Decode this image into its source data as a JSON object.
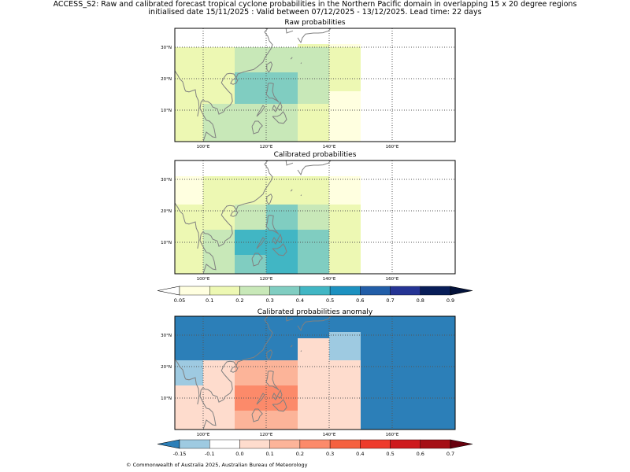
{
  "header": {
    "line1": "ACCESS_S2: Raw and calibrated forecast tropical cyclone probabilities in the Northern Pacific domain in overlapping 15 x 20 degree regions",
    "line2": "initialised date 15/11/2025 :  Valid between 07/12/2025 - 13/12/2025. Lead time: 22 days"
  },
  "footer": {
    "copyright": "© Commonwealth of Australia 2025, Australian Bureau of Meteorology"
  },
  "colors": {
    "land_outline": "#808080",
    "grid": "#555555",
    "prob_scale": [
      "#ffffff",
      "#ffffe0",
      "#edf8b3",
      "#c8e8b8",
      "#80cdc1",
      "#41b6c4",
      "#1d91c0",
      "#225ea8",
      "#253494",
      "#081d58",
      "#03123a"
    ],
    "anom_scale": [
      "#2c7fb8",
      "#9ecae1",
      "#ffffff",
      "#fedccd",
      "#fcb499",
      "#fc8a6a",
      "#f5613f",
      "#ee3b2c",
      "#ce1a1d",
      "#a50f15",
      "#67000d"
    ]
  },
  "chart_data": [
    {
      "type": "heatmap",
      "title": "Raw probabilities",
      "xlabel": "",
      "ylabel": "",
      "xlim": [
        91,
        180
      ],
      "ylim": [
        0,
        36
      ],
      "x_ticks": [
        100,
        120,
        140,
        160
      ],
      "x_tick_labels": [
        "100°E",
        "120°E",
        "140°E",
        "160°E"
      ],
      "y_ticks": [
        10,
        20,
        30
      ],
      "y_tick_labels": [
        "10°N",
        "20°N",
        "30°N"
      ],
      "grid": true,
      "cells": [
        {
          "lon": [
            91,
            100
          ],
          "lat": [
            0,
            22
          ],
          "value": 0.15
        },
        {
          "lon": [
            100,
            110
          ],
          "lat": [
            0,
            22
          ],
          "value": 0.25
        },
        {
          "lon": [
            110,
            120
          ],
          "lat": [
            0,
            22
          ],
          "value": 0.25
        },
        {
          "lon": [
            120,
            130
          ],
          "lat": [
            0,
            22
          ],
          "value": 0.25
        },
        {
          "lon": [
            130,
            140
          ],
          "lat": [
            0,
            22
          ],
          "value": 0.25
        },
        {
          "lon": [
            140,
            150
          ],
          "lat": [
            0,
            22
          ],
          "value": 0.05
        },
        {
          "lon": [
            91,
            100
          ],
          "lat": [
            22,
            30
          ],
          "value": 0.15
        },
        {
          "lon": [
            100,
            110
          ],
          "lat": [
            22,
            30
          ],
          "value": 0.15
        },
        {
          "lon": [
            110,
            120
          ],
          "lat": [
            22,
            30
          ],
          "value": 0.25
        },
        {
          "lon": [
            120,
            130
          ],
          "lat": [
            22,
            30
          ],
          "value": 0.25
        },
        {
          "lon": [
            130,
            140
          ],
          "lat": [
            22,
            30
          ],
          "value": 0.25
        },
        {
          "lon": [
            140,
            150
          ],
          "lat": [
            22,
            30
          ],
          "value": 0.15
        },
        {
          "lon": [
            110,
            120
          ],
          "lat": [
            6,
            14
          ],
          "value": 0.35
        },
        {
          "lon": [
            120,
            130
          ],
          "lat": [
            6,
            14
          ],
          "value": 0.35
        },
        {
          "lon": [
            110,
            120
          ],
          "lat": [
            14,
            22
          ],
          "value": 0.35
        },
        {
          "lon": [
            120,
            130
          ],
          "lat": [
            14,
            22
          ],
          "value": 0.35
        },
        {
          "lon": [
            130,
            140
          ],
          "lat": [
            6,
            14
          ],
          "value": 0.25
        },
        {
          "lon": [
            100,
            110
          ],
          "lat": [
            12,
            22
          ],
          "value": 0.15
        },
        {
          "lon": [
            91,
            100
          ],
          "lat": [
            12,
            22
          ],
          "value": 0.15
        },
        {
          "lon": [
            140,
            150
          ],
          "lat": [
            0,
            16
          ],
          "value": 0.05
        },
        {
          "lon": [
            140,
            150
          ],
          "lat": [
            16,
            30
          ],
          "value": 0.15
        },
        {
          "lon": [
            130,
            140
          ],
          "lat": [
            0,
            12
          ],
          "value": 0.15
        },
        {
          "lon": [
            130,
            140
          ],
          "lat": [
            12,
            16
          ],
          "value": 0.25
        },
        {
          "lon": [
            100,
            110
          ],
          "lat": [
            0,
            12
          ],
          "value": 0.25
        },
        {
          "lon": [
            110,
            120
          ],
          "lat": [
            0,
            12
          ],
          "value": 0.25
        },
        {
          "lon": [
            120,
            130
          ],
          "lat": [
            0,
            12
          ],
          "value": 0.25
        },
        {
          "lon": [
            91,
            100
          ],
          "lat": [
            0,
            12
          ],
          "value": 0.15
        },
        {
          "lon": [
            130,
            150
          ],
          "lat": [
            30,
            31
          ],
          "value": 0.15
        },
        {
          "lon": [
            140,
            150
          ],
          "lat": [
            30,
            31
          ],
          "value": 0.05
        }
      ]
    },
    {
      "type": "heatmap",
      "title": "Calibrated probabilities",
      "xlabel": "",
      "ylabel": "",
      "xlim": [
        91,
        180
      ],
      "ylim": [
        0,
        36
      ],
      "x_ticks": [
        100,
        120,
        140,
        160
      ],
      "x_tick_labels": [
        "100°E",
        "120°E",
        "140°E",
        "160°E"
      ],
      "y_ticks": [
        10,
        20,
        30
      ],
      "y_tick_labels": [
        "10°N",
        "20°N",
        "30°N"
      ],
      "grid": true,
      "cells": [
        {
          "lon": [
            91,
            100
          ],
          "lat": [
            0,
            22
          ],
          "value": 0.15
        },
        {
          "lon": [
            100,
            110
          ],
          "lat": [
            0,
            22
          ],
          "value": 0.25
        },
        {
          "lon": [
            110,
            120
          ],
          "lat": [
            0,
            22
          ],
          "value": 0.25
        },
        {
          "lon": [
            120,
            130
          ],
          "lat": [
            0,
            22
          ],
          "value": 0.25
        },
        {
          "lon": [
            130,
            140
          ],
          "lat": [
            0,
            22
          ],
          "value": 0.25
        },
        {
          "lon": [
            140,
            150
          ],
          "lat": [
            0,
            22
          ],
          "value": 0.15
        },
        {
          "lon": [
            91,
            100
          ],
          "lat": [
            22,
            31
          ],
          "value": 0.05
        },
        {
          "lon": [
            100,
            110
          ],
          "lat": [
            22,
            31
          ],
          "value": 0.15
        },
        {
          "lon": [
            110,
            120
          ],
          "lat": [
            22,
            31
          ],
          "value": 0.15
        },
        {
          "lon": [
            120,
            130
          ],
          "lat": [
            22,
            31
          ],
          "value": 0.15
        },
        {
          "lon": [
            130,
            140
          ],
          "lat": [
            22,
            31
          ],
          "value": 0.15
        },
        {
          "lon": [
            140,
            150
          ],
          "lat": [
            22,
            31
          ],
          "value": 0.05
        },
        {
          "lon": [
            91,
            100
          ],
          "lat": [
            0,
            22
          ],
          "value": 0.15
        },
        {
          "lon": [
            100,
            110
          ],
          "lat": [
            0,
            14
          ],
          "value": 0.25
        },
        {
          "lon": [
            100,
            110
          ],
          "lat": [
            14,
            22
          ],
          "value": 0.15
        },
        {
          "lon": [
            110,
            120
          ],
          "lat": [
            14,
            22
          ],
          "value": 0.25
        },
        {
          "lon": [
            120,
            130
          ],
          "lat": [
            14,
            22
          ],
          "value": 0.35
        },
        {
          "lon": [
            110,
            120
          ],
          "lat": [
            6,
            14
          ],
          "value": 0.45
        },
        {
          "lon": [
            120,
            130
          ],
          "lat": [
            6,
            14
          ],
          "value": 0.45
        },
        {
          "lon": [
            110,
            120
          ],
          "lat": [
            0,
            6
          ],
          "value": 0.35
        },
        {
          "lon": [
            120,
            130
          ],
          "lat": [
            0,
            6
          ],
          "value": 0.45
        },
        {
          "lon": [
            130,
            140
          ],
          "lat": [
            0,
            6
          ],
          "value": 0.35
        },
        {
          "lon": [
            130,
            140
          ],
          "lat": [
            6,
            14
          ],
          "value": 0.35
        },
        {
          "lon": [
            130,
            140
          ],
          "lat": [
            14,
            22
          ],
          "value": 0.25
        },
        {
          "lon": [
            140,
            150
          ],
          "lat": [
            0,
            22
          ],
          "value": 0.15
        }
      ]
    },
    {
      "type": "heatmap",
      "title": "Calibrated probabilities anomaly",
      "xlabel": "",
      "ylabel": "",
      "xlim": [
        91,
        180
      ],
      "ylim": [
        0,
        36
      ],
      "x_ticks": [
        100,
        120,
        140,
        160
      ],
      "x_tick_labels": [
        "100°E",
        "120°E",
        "140°E",
        "160°E"
      ],
      "y_ticks": [
        10,
        20,
        30
      ],
      "y_tick_labels": [
        "10°N",
        "20°N",
        "30°N"
      ],
      "grid": true,
      "background_value": -0.2,
      "cells": [
        {
          "lon": [
            91,
            180
          ],
          "lat": [
            0,
            36
          ],
          "value": -0.2
        },
        {
          "lon": [
            140,
            150
          ],
          "lat": [
            22,
            31
          ],
          "value": -0.12
        },
        {
          "lon": [
            130,
            140
          ],
          "lat": [
            22,
            29
          ],
          "value": 0.0
        },
        {
          "lon": [
            91,
            100
          ],
          "lat": [
            14,
            22
          ],
          "value": -0.12
        },
        {
          "lon": [
            91,
            100
          ],
          "lat": [
            0,
            14
          ],
          "value": 0.0
        },
        {
          "lon": [
            100,
            110
          ],
          "lat": [
            0,
            22
          ],
          "value": 0.05
        },
        {
          "lon": [
            110,
            120
          ],
          "lat": [
            0,
            22
          ],
          "value": 0.05
        },
        {
          "lon": [
            110,
            120
          ],
          "lat": [
            6,
            14
          ],
          "value": 0.25
        },
        {
          "lon": [
            110,
            120
          ],
          "lat": [
            14,
            22
          ],
          "value": 0.15
        },
        {
          "lon": [
            120,
            130
          ],
          "lat": [
            14,
            22
          ],
          "value": 0.15
        },
        {
          "lon": [
            120,
            130
          ],
          "lat": [
            6,
            14
          ],
          "value": 0.25
        },
        {
          "lon": [
            120,
            130
          ],
          "lat": [
            0,
            6
          ],
          "value": 0.15
        },
        {
          "lon": [
            130,
            140
          ],
          "lat": [
            0,
            22
          ],
          "value": 0.05
        },
        {
          "lon": [
            140,
            150
          ],
          "lat": [
            0,
            22
          ],
          "value": 0.0
        },
        {
          "lon": [
            110,
            120
          ],
          "lat": [
            0,
            6
          ],
          "value": 0.15
        },
        {
          "lon": [
            100,
            110
          ],
          "lat": [
            0,
            14
          ],
          "value": 0.05
        },
        {
          "lon": [
            100,
            110
          ],
          "lat": [
            14,
            22
          ],
          "value": 0.0
        }
      ]
    },
    {
      "type": "colorbar",
      "name": "probability",
      "tick_labels": [
        "0.05",
        "0.1",
        "0.2",
        "0.3",
        "0.4",
        "0.5",
        "0.6",
        "0.7",
        "0.8",
        "0.9"
      ]
    },
    {
      "type": "colorbar",
      "name": "anomaly",
      "tick_labels": [
        "-0.15",
        "-0.1",
        "0.0",
        "0.1",
        "0.2",
        "0.3",
        "0.4",
        "0.5",
        "0.6",
        "0.7"
      ]
    }
  ]
}
